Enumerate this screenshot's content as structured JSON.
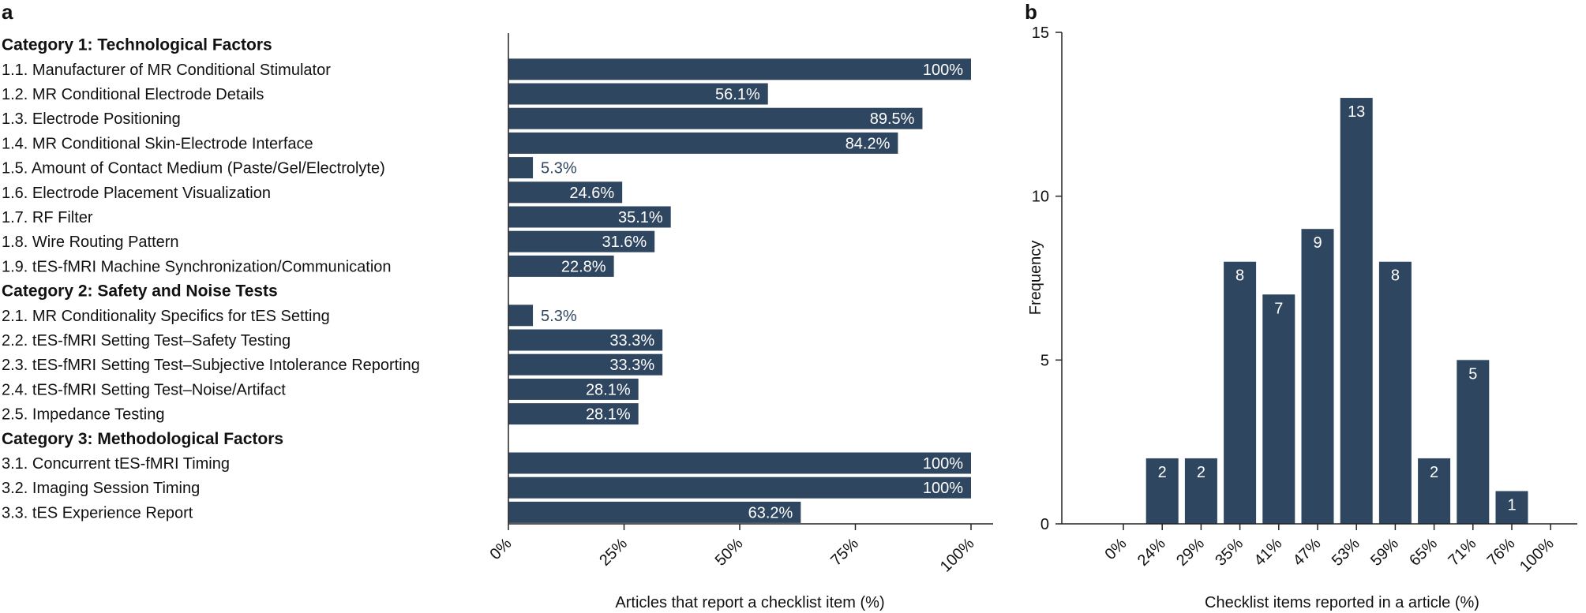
{
  "colors": {
    "bar": "#2f4660",
    "axis": "#222222",
    "text": "#111111",
    "label_inside": "#ffffff",
    "label_outside": "#2f4660"
  },
  "panel_a": {
    "letter": "a",
    "chart_data": {
      "type": "bar",
      "orientation": "horizontal",
      "xlabel": "Articles that report a checklist item (%)",
      "xlim": [
        0,
        100
      ],
      "xticks": [
        0,
        25,
        50,
        75,
        100
      ],
      "xtick_labels": [
        "0%",
        "25%",
        "50%",
        "75%",
        "100%"
      ],
      "rows": [
        {
          "kind": "category",
          "label": "Category 1: Technological Factors"
        },
        {
          "kind": "item",
          "label": "1.1. Manufacturer of MR Conditional Stimulator",
          "value": 100,
          "value_label": "100%"
        },
        {
          "kind": "item",
          "label": "1.2. MR Conditional Electrode Details",
          "value": 56.1,
          "value_label": "56.1%"
        },
        {
          "kind": "item",
          "label": "1.3. Electrode Positioning",
          "value": 89.5,
          "value_label": "89.5%"
        },
        {
          "kind": "item",
          "label": "1.4. MR Conditional Skin-Electrode Interface",
          "value": 84.2,
          "value_label": "84.2%"
        },
        {
          "kind": "item",
          "label": "1.5. Amount of Contact Medium (Paste/Gel/Electrolyte)",
          "value": 5.3,
          "value_label": "5.3%"
        },
        {
          "kind": "item",
          "label": "1.6. Electrode Placement Visualization",
          "value": 24.6,
          "value_label": "24.6%"
        },
        {
          "kind": "item",
          "label": "1.7. RF Filter",
          "value": 35.1,
          "value_label": "35.1%"
        },
        {
          "kind": "item",
          "label": "1.8. Wire Routing Pattern",
          "value": 31.6,
          "value_label": "31.6%"
        },
        {
          "kind": "item",
          "label": "1.9. tES-fMRI Machine Synchronization/Communication",
          "value": 22.8,
          "value_label": "22.8%"
        },
        {
          "kind": "category",
          "label": "Category 2: Safety and Noise Tests"
        },
        {
          "kind": "item",
          "label": "2.1. MR Conditionality Specifics for tES Setting",
          "value": 5.3,
          "value_label": "5.3%"
        },
        {
          "kind": "item",
          "label": "2.2. tES-fMRI Setting Test–Safety Testing",
          "value": 33.3,
          "value_label": "33.3%"
        },
        {
          "kind": "item",
          "label": "2.3. tES-fMRI Setting Test–Subjective Intolerance Reporting",
          "value": 33.3,
          "value_label": "33.3%"
        },
        {
          "kind": "item",
          "label": "2.4. tES-fMRI Setting Test–Noise/Artifact",
          "value": 28.1,
          "value_label": "28.1%"
        },
        {
          "kind": "item",
          "label": "2.5. Impedance Testing",
          "value": 28.1,
          "value_label": "28.1%"
        },
        {
          "kind": "category",
          "label": "Category 3: Methodological Factors"
        },
        {
          "kind": "item",
          "label": "3.1. Concurrent tES-fMRI Timing",
          "value": 100,
          "value_label": "100%"
        },
        {
          "kind": "item",
          "label": "3.2. Imaging Session Timing",
          "value": 100,
          "value_label": "100%"
        },
        {
          "kind": "item",
          "label": "3.3. tES Experience Report",
          "value": 63.2,
          "value_label": "63.2%"
        }
      ]
    }
  },
  "panel_b": {
    "letter": "b",
    "chart_data": {
      "type": "bar",
      "orientation": "vertical",
      "xlabel": "Checklist items reported in a article (%)",
      "ylabel": "Frequency",
      "ylim": [
        0,
        15
      ],
      "yticks": [
        0,
        5,
        10,
        15
      ],
      "ytick_labels": [
        "0",
        "5",
        "10",
        "15"
      ],
      "categories": [
        "0%",
        "24%",
        "29%",
        "35%",
        "41%",
        "47%",
        "53%",
        "59%",
        "65%",
        "71%",
        "76%",
        "100%"
      ],
      "values": [
        0,
        2,
        2,
        8,
        7,
        9,
        13,
        8,
        2,
        5,
        1,
        0
      ],
      "value_labels": [
        "",
        "2",
        "2",
        "8",
        "7",
        "9",
        "13",
        "8",
        "2",
        "5",
        "1",
        ""
      ]
    }
  }
}
